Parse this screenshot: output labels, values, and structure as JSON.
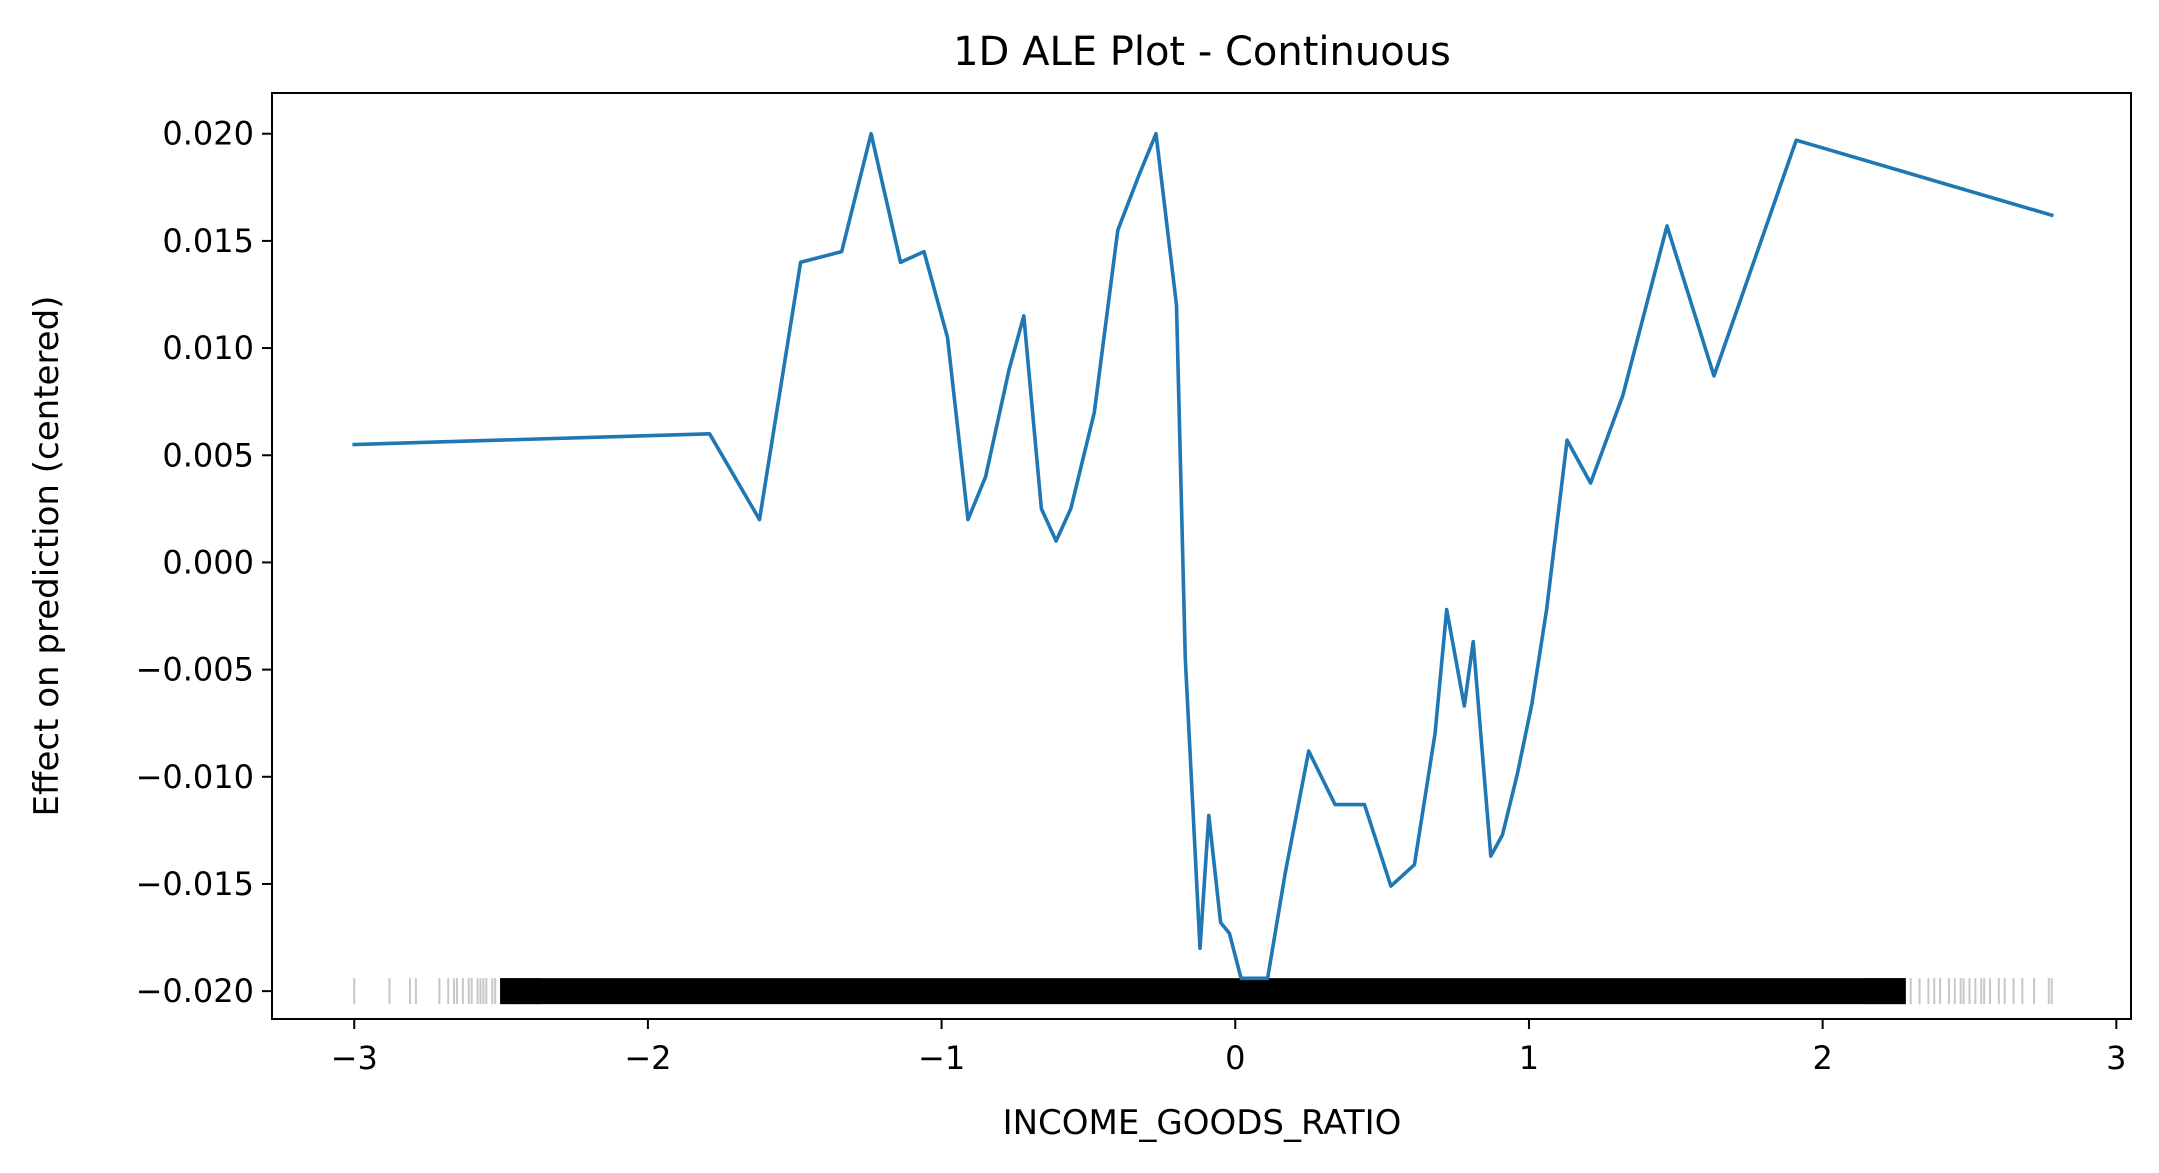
{
  "chart_data": {
    "type": "line",
    "title": "1D ALE Plot - Continuous",
    "xlabel": "INCOME_GOODS_RATIO",
    "ylabel": "Effect on prediction (centered)",
    "xlim": [
      -3.28,
      3.05
    ],
    "ylim": [
      -0.0213,
      0.0219
    ],
    "x_ticks": [
      -3,
      -2,
      -1,
      0,
      1,
      2,
      3
    ],
    "x_tick_labels": [
      "−3",
      "−2",
      "−1",
      "0",
      "1",
      "2",
      "3"
    ],
    "y_ticks": [
      0.02,
      0.015,
      0.01,
      0.005,
      0.0,
      -0.005,
      -0.01,
      -0.015,
      -0.02
    ],
    "y_tick_labels": [
      "0.020",
      "0.015",
      "0.010",
      "0.005",
      "0.000",
      "−0.005",
      "−0.010",
      "−0.015",
      "−0.020"
    ],
    "grid": false,
    "series": [
      {
        "color": "#1f77b4",
        "x": [
          -3.0,
          -1.79,
          -1.62,
          -1.48,
          -1.34,
          -1.24,
          -1.14,
          -1.06,
          -0.98,
          -0.91,
          -0.85,
          -0.77,
          -0.72,
          -0.66,
          -0.61,
          -0.56,
          -0.48,
          -0.4,
          -0.33,
          -0.27,
          -0.2,
          -0.17,
          -0.12,
          -0.09,
          -0.05,
          -0.02,
          0.02,
          0.06,
          0.11,
          0.17,
          0.25,
          0.34,
          0.44,
          0.53,
          0.61,
          0.68,
          0.72,
          0.78,
          0.81,
          0.87,
          0.91,
          0.96,
          1.01,
          1.06,
          1.13,
          1.21,
          1.32,
          1.47,
          1.63,
          1.91,
          2.78
        ],
        "y": [
          0.0055,
          0.006,
          0.002,
          0.014,
          0.0145,
          0.02,
          0.014,
          0.0145,
          0.0105,
          0.002,
          0.004,
          0.009,
          0.0115,
          0.0025,
          0.001,
          0.0025,
          0.007,
          0.0155,
          0.018,
          0.02,
          0.012,
          -0.0045,
          -0.018,
          -0.0118,
          -0.0168,
          -0.0173,
          -0.0194,
          -0.0194,
          -0.0194,
          -0.0145,
          -0.0088,
          -0.0113,
          -0.0113,
          -0.0151,
          -0.0141,
          -0.008,
          -0.0022,
          -0.0067,
          -0.0037,
          -0.0137,
          -0.0127,
          -0.0099,
          -0.0066,
          -0.0022,
          0.0057,
          0.0037,
          0.0078,
          0.0157,
          0.0087,
          0.0197,
          0.0162
        ]
      }
    ],
    "rug": {
      "color": "#000000",
      "y": -0.02,
      "x_sparse": [
        -3.0,
        -2.88,
        -2.81,
        -2.79,
        -2.71,
        -2.68,
        -2.66,
        -2.65,
        -2.63,
        -2.61,
        -2.6,
        -2.58,
        -2.57,
        -2.56,
        -2.55,
        -2.53,
        -2.52,
        2.3,
        2.33,
        2.36,
        2.38,
        2.4,
        2.43,
        2.45,
        2.47,
        2.48,
        2.5,
        2.52,
        2.54,
        2.55,
        2.57,
        2.6,
        2.62,
        2.65,
        2.68,
        2.72,
        2.77,
        2.78
      ],
      "dense_range": [
        -2.5,
        2.28
      ]
    }
  }
}
